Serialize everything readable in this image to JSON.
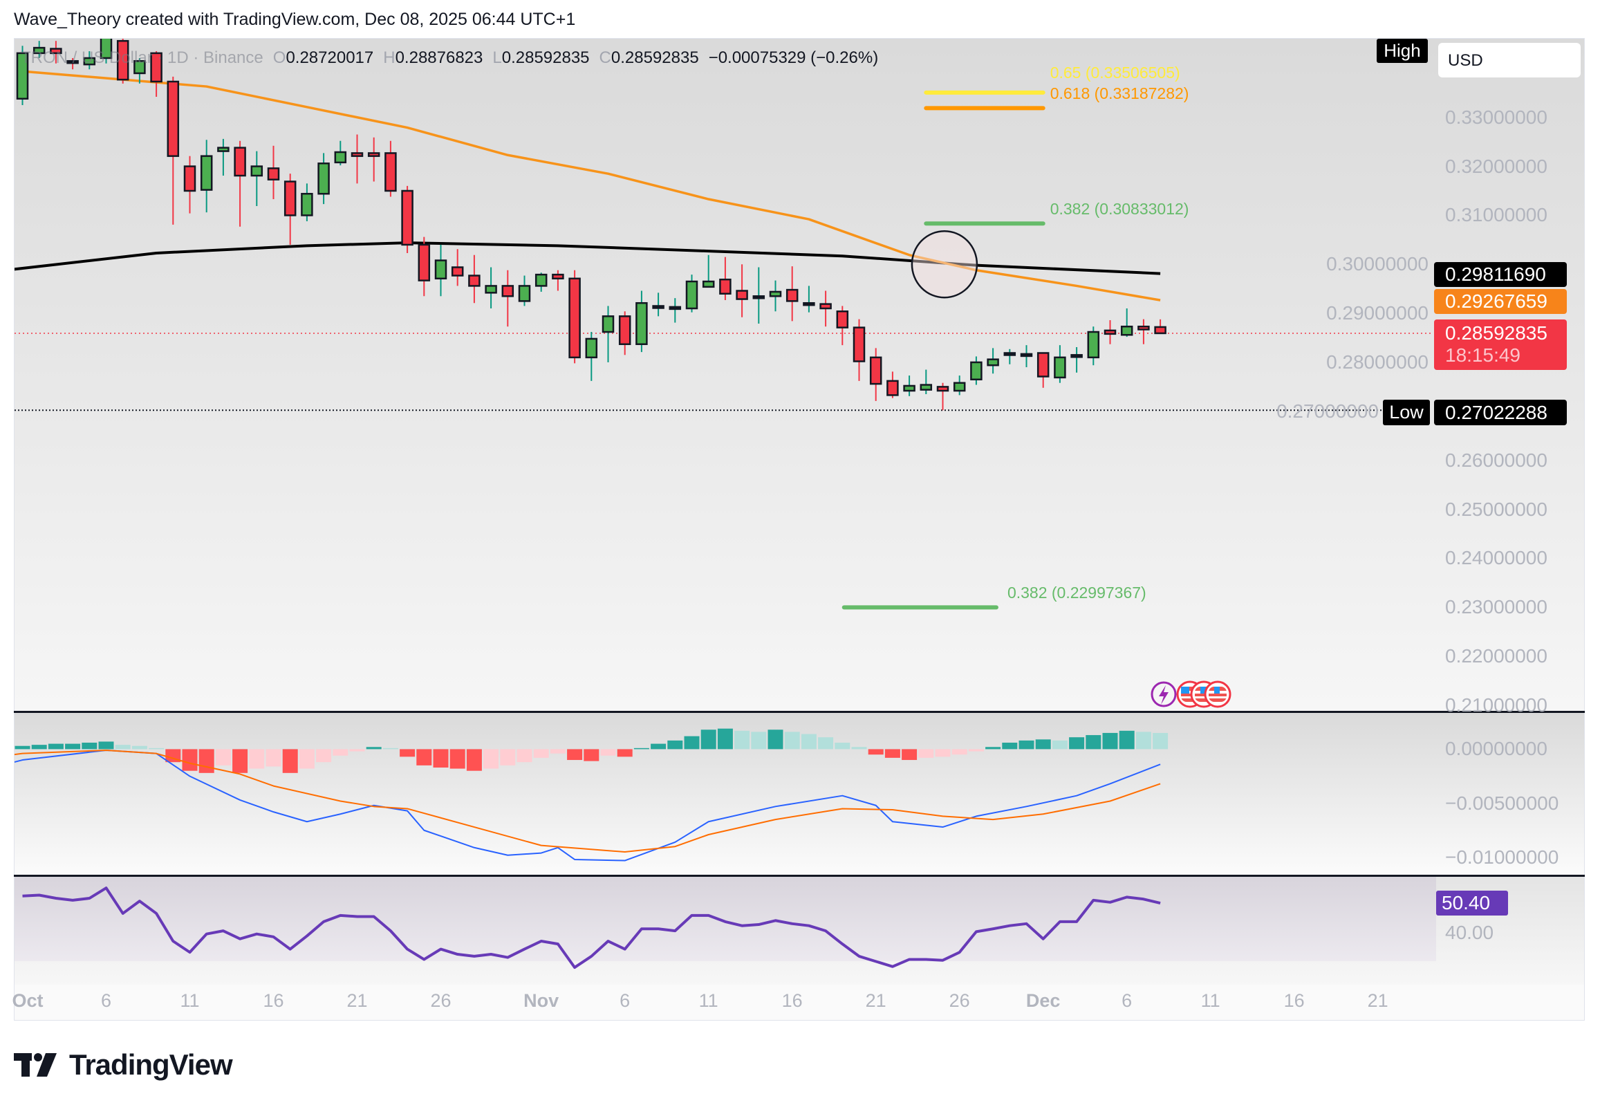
{
  "header": {
    "credit": "Wave_Theory created with TradingView.com, Dec 08, 2025 06:44 UTC+1"
  },
  "legend": {
    "symbol": "TRON / US Dollar · 1D · Binance",
    "open_key": "O",
    "open": "0.28720017",
    "high_key": "H",
    "high": "0.28876823",
    "low_key": "L",
    "low": "0.28592835",
    "close_key": "C",
    "close": "0.28592835",
    "change": "−0.00075329 (−0.26%)"
  },
  "currency_button": "USD",
  "tags": {
    "high_label": "High",
    "low_label": "Low",
    "low_value": "0.27022288",
    "ma200_value": "0.29811690",
    "ema50_value": "0.29267659",
    "last_price": "0.28592835",
    "countdown": "18:15:49",
    "rsi_value": "50.40"
  },
  "colors": {
    "up_body": "#4caf50",
    "down_body": "#f23645",
    "up_wick": "#089981",
    "down_wick": "#f23645",
    "ema50": "#f7931a",
    "ma200": "#000000",
    "macd": "#2962ff",
    "signal": "#ff6d00",
    "rsi": "#673ab7",
    "fib_065": "#ffeb3b",
    "fib_0618": "#ff9800",
    "fib_0382": "#66bb6a"
  },
  "price_axis": {
    "ticks": [
      "0.33000000",
      "0.32000000",
      "0.31000000",
      "0.30000000",
      "0.29000000",
      "0.28000000",
      "0.27000000",
      "0.26000000",
      "0.25000000",
      "0.24000000",
      "0.23000000",
      "0.22000000",
      "0.21000000"
    ]
  },
  "macd_axis": {
    "ticks": [
      "0.00000000",
      "−0.00500000",
      "−0.01000000"
    ]
  },
  "rsi_axis": {
    "ticks": [
      "40.00"
    ]
  },
  "time_axis": {
    "ticks": [
      {
        "label": "Oct",
        "date": "Oct 1",
        "bold": true
      },
      {
        "label": "6",
        "date": "Oct 6"
      },
      {
        "label": "11",
        "date": "Oct 11"
      },
      {
        "label": "16",
        "date": "Oct 16"
      },
      {
        "label": "21",
        "date": "Oct 21"
      },
      {
        "label": "26",
        "date": "Oct 26"
      },
      {
        "label": "Nov",
        "date": "Nov 1",
        "bold": true
      },
      {
        "label": "6",
        "date": "Nov 6"
      },
      {
        "label": "11",
        "date": "Nov 11"
      },
      {
        "label": "16",
        "date": "Nov 16"
      },
      {
        "label": "21",
        "date": "Nov 21"
      },
      {
        "label": "26",
        "date": "Nov 26"
      },
      {
        "label": "Dec",
        "date": "Dec 1",
        "bold": true
      },
      {
        "label": "6",
        "date": "Dec 6"
      },
      {
        "label": "11",
        "date": "Dec 11"
      },
      {
        "label": "16",
        "date": "Dec 16"
      },
      {
        "label": "21",
        "date": "Dec 21"
      }
    ]
  },
  "fib_levels": [
    {
      "label": "0.65 (0.33506505)",
      "price": 0.33506505,
      "color_key": "fib_065"
    },
    {
      "label": "0.618 (0.33187282)",
      "price": 0.33187282,
      "color_key": "fib_0618"
    },
    {
      "label": "0.382 (0.30833012)",
      "price": 0.30833012,
      "color_key": "fib_0382"
    },
    {
      "label": "0.382 (0.22997367)",
      "price": 0.22997367,
      "color_key": "fib_0382"
    }
  ],
  "event_icons": [
    "lightning-icon",
    "us-flag-icon",
    "us-flag-icon",
    "us-flag-icon"
  ],
  "chart_data": {
    "type": "candlestick",
    "interval": "1D",
    "ylim": [
      0.205,
      0.35
    ],
    "columns": [
      "date",
      "open",
      "high",
      "low",
      "close"
    ],
    "candles": [
      [
        "Oct 1",
        0.3338,
        0.3446,
        0.3325,
        0.3431
      ],
      [
        "Oct 2",
        0.3431,
        0.3456,
        0.3421,
        0.3442
      ],
      [
        "Oct 3",
        0.344,
        0.3456,
        0.341,
        0.3431
      ],
      [
        "Oct 4",
        0.3415,
        0.3421,
        0.3398,
        0.3413
      ],
      [
        "Oct 5",
        0.3408,
        0.3435,
        0.3398,
        0.3421
      ],
      [
        "Oct 6",
        0.3421,
        0.3477,
        0.341,
        0.3467
      ],
      [
        "Oct 7",
        0.3456,
        0.3467,
        0.3369,
        0.3377
      ],
      [
        "Oct 8",
        0.339,
        0.3421,
        0.3369,
        0.3415
      ],
      [
        "Oct 9",
        0.3431,
        0.3435,
        0.3342,
        0.3373
      ],
      [
        "Oct 10",
        0.3373,
        0.3383,
        0.3081,
        0.3221
      ],
      [
        "Oct 11",
        0.32,
        0.3221,
        0.3104,
        0.315
      ],
      [
        "Oct 12",
        0.3152,
        0.3254,
        0.3106,
        0.3221
      ],
      [
        "Oct 13",
        0.3231,
        0.3256,
        0.3181,
        0.3238
      ],
      [
        "Oct 14",
        0.3238,
        0.3252,
        0.3077,
        0.3181
      ],
      [
        "Oct 15",
        0.3181,
        0.3231,
        0.3119,
        0.32
      ],
      [
        "Oct 16",
        0.3196,
        0.3242,
        0.3133,
        0.3173
      ],
      [
        "Oct 17",
        0.3169,
        0.3185,
        0.304,
        0.31
      ],
      [
        "Oct 18",
        0.31,
        0.3165,
        0.3088,
        0.3144
      ],
      [
        "Oct 19",
        0.3144,
        0.3227,
        0.3123,
        0.3206
      ],
      [
        "Oct 20",
        0.3208,
        0.3252,
        0.3202,
        0.3229
      ],
      [
        "Oct 21",
        0.3227,
        0.3265,
        0.3165,
        0.3221
      ],
      [
        "Oct 22",
        0.3227,
        0.3259,
        0.3169,
        0.3221
      ],
      [
        "Oct 23",
        0.3227,
        0.3252,
        0.3138,
        0.315
      ],
      [
        "Oct 24",
        0.315,
        0.316,
        0.3023,
        0.304
      ],
      [
        "Oct 25",
        0.304,
        0.3056,
        0.2935,
        0.2967
      ],
      [
        "Oct 26",
        0.2971,
        0.304,
        0.2935,
        0.3008
      ],
      [
        "Oct 27",
        0.2994,
        0.3031,
        0.2956,
        0.2977
      ],
      [
        "Oct 28",
        0.2977,
        0.3019,
        0.2921,
        0.2956
      ],
      [
        "Oct 29",
        0.2942,
        0.2994,
        0.291,
        0.2956
      ],
      [
        "Oct 30",
        0.2956,
        0.2988,
        0.2873,
        0.2935
      ],
      [
        "Oct 31",
        0.2925,
        0.2977,
        0.2915,
        0.2956
      ],
      [
        "Nov 1",
        0.2956,
        0.2983,
        0.2944,
        0.2979
      ],
      [
        "Nov 2",
        0.2979,
        0.2988,
        0.2946,
        0.2971
      ],
      [
        "Nov 3",
        0.2971,
        0.2988,
        0.2798,
        0.281
      ],
      [
        "Nov 4",
        0.281,
        0.2862,
        0.2762,
        0.2848
      ],
      [
        "Nov 5",
        0.2862,
        0.2915,
        0.28,
        0.2894
      ],
      [
        "Nov 6",
        0.2894,
        0.2904,
        0.2815,
        0.2837
      ],
      [
        "Nov 7",
        0.2837,
        0.2946,
        0.2821,
        0.2921
      ],
      [
        "Nov 8",
        0.2913,
        0.2942,
        0.2894,
        0.2915
      ],
      [
        "Nov 9",
        0.2913,
        0.2931,
        0.2881,
        0.2913
      ],
      [
        "Nov 10",
        0.291,
        0.2979,
        0.2902,
        0.2965
      ],
      [
        "Nov 11",
        0.2954,
        0.3019,
        0.2954,
        0.2965
      ],
      [
        "Nov 12",
        0.2969,
        0.3015,
        0.2927,
        0.294
      ],
      [
        "Nov 13",
        0.2946,
        0.3,
        0.2892,
        0.2929
      ],
      [
        "Nov 14",
        0.2935,
        0.2994,
        0.2879,
        0.2935
      ],
      [
        "Nov 15",
        0.2935,
        0.2967,
        0.2904,
        0.2944
      ],
      [
        "Nov 16",
        0.2948,
        0.2996,
        0.2884,
        0.2925
      ],
      [
        "Nov 17",
        0.2921,
        0.2956,
        0.2902,
        0.2921
      ],
      [
        "Nov 18",
        0.2919,
        0.2946,
        0.2873,
        0.291
      ],
      [
        "Nov 19",
        0.2904,
        0.2915,
        0.2835,
        0.2871
      ],
      [
        "Nov 20",
        0.2871,
        0.2888,
        0.2762,
        0.2802
      ],
      [
        "Nov 21",
        0.281,
        0.2829,
        0.2721,
        0.2756
      ],
      [
        "Nov 22",
        0.2762,
        0.2781,
        0.2727,
        0.2733
      ],
      [
        "Nov 23",
        0.2742,
        0.2773,
        0.2731,
        0.2752
      ],
      [
        "Nov 24",
        0.2744,
        0.2785,
        0.2735,
        0.2754
      ],
      [
        "Nov 25",
        0.275,
        0.2758,
        0.27022288,
        0.2742
      ],
      [
        "Nov 26",
        0.2742,
        0.2773,
        0.2733,
        0.2758
      ],
      [
        "Nov 27",
        0.2765,
        0.2812,
        0.2754,
        0.28
      ],
      [
        "Nov 28",
        0.2794,
        0.2829,
        0.2777,
        0.2806
      ],
      [
        "Nov 29",
        0.2819,
        0.2827,
        0.2796,
        0.2819
      ],
      [
        "Nov 30",
        0.2817,
        0.2835,
        0.279,
        0.2817
      ],
      [
        "Dec 1",
        0.2819,
        0.2819,
        0.2748,
        0.2771
      ],
      [
        "Dec 2",
        0.2769,
        0.2835,
        0.2758,
        0.281
      ],
      [
        "Dec 3",
        0.2815,
        0.2831,
        0.2779,
        0.2815
      ],
      [
        "Dec 4",
        0.281,
        0.2873,
        0.2794,
        0.2862
      ],
      [
        "Dec 5",
        0.2865,
        0.2886,
        0.2837,
        0.2858
      ],
      [
        "Dec 6",
        0.2856,
        0.291,
        0.2852,
        0.2873
      ],
      [
        "Dec 7",
        0.2873,
        0.2888,
        0.2837,
        0.2867
      ],
      [
        "Dec 8",
        0.28720017,
        0.28876823,
        0.28592835,
        0.28592835
      ]
    ],
    "ema50": [
      [
        "Oct 1",
        0.3394
      ],
      [
        "Oct 12",
        0.3363
      ],
      [
        "Oct 18",
        0.3321
      ],
      [
        "Oct 24",
        0.3279
      ],
      [
        "Oct 30",
        0.3223
      ],
      [
        "Nov 5",
        0.3185
      ],
      [
        "Nov 11",
        0.3133
      ],
      [
        "Nov 17",
        0.3092
      ],
      [
        "Nov 23",
        0.3019
      ],
      [
        "Nov 27",
        0.2988
      ],
      [
        "Dec 3",
        0.2956
      ],
      [
        "Dec 8",
        0.29267659
      ]
    ],
    "ma200": [
      [
        "Sep 30",
        0.2988
      ],
      [
        "Oct 9",
        0.3023
      ],
      [
        "Oct 18",
        0.3038
      ],
      [
        "Oct 24",
        0.3044
      ],
      [
        "Nov 2",
        0.3038
      ],
      [
        "Nov 11",
        0.3027
      ],
      [
        "Nov 19",
        0.3017
      ],
      [
        "Nov 27",
        0.2998
      ],
      [
        "Dec 8",
        0.2981169
      ]
    ],
    "macd": {
      "ylim": [
        -0.0125,
        0.003
      ],
      "macd_line": [
        [
          "Sep 30",
          -0.0014
        ],
        [
          "Oct 1",
          -0.001
        ],
        [
          "Oct 6",
          -0.0001
        ],
        [
          "Oct 9",
          -0.0004
        ],
        [
          "Oct 11",
          -0.0025
        ],
        [
          "Oct 14",
          -0.0047
        ],
        [
          "Oct 16",
          -0.0058
        ],
        [
          "Oct 18",
          -0.0067
        ],
        [
          "Oct 20",
          -0.006
        ],
        [
          "Oct 22",
          -0.0052
        ],
        [
          "Oct 24",
          -0.0057
        ],
        [
          "Oct 25",
          -0.0075
        ],
        [
          "Oct 28",
          -0.0091
        ],
        [
          "Oct 30",
          -0.0098
        ],
        [
          "Nov 1",
          -0.0096
        ],
        [
          "Nov 2",
          -0.0091
        ],
        [
          "Nov 3",
          -0.0102
        ],
        [
          "Nov 6",
          -0.0103
        ],
        [
          "Nov 9",
          -0.0086
        ],
        [
          "Nov 11",
          -0.0067
        ],
        [
          "Nov 15",
          -0.0053
        ],
        [
          "Nov 19",
          -0.0043
        ],
        [
          "Nov 21",
          -0.0052
        ],
        [
          "Nov 22",
          -0.0067
        ],
        [
          "Nov 25",
          -0.0072
        ],
        [
          "Nov 27",
          -0.0062
        ],
        [
          "Nov 30",
          -0.0053
        ],
        [
          "Dec 3",
          -0.0043
        ],
        [
          "Dec 5",
          -0.0032
        ],
        [
          "Dec 8",
          -0.0014
        ]
      ],
      "signal_line": [
        [
          "Sep 30",
          -0.0006
        ],
        [
          "Oct 1",
          -0.0004
        ],
        [
          "Oct 6",
          -0.0001
        ],
        [
          "Oct 9",
          -0.0004
        ],
        [
          "Oct 11",
          -0.0013
        ],
        [
          "Oct 14",
          -0.0023
        ],
        [
          "Oct 16",
          -0.0034
        ],
        [
          "Oct 20",
          -0.0048
        ],
        [
          "Oct 22",
          -0.0053
        ],
        [
          "Oct 24",
          -0.0055
        ],
        [
          "Oct 28",
          -0.0072
        ],
        [
          "Nov 1",
          -0.0089
        ],
        [
          "Nov 6",
          -0.0095
        ],
        [
          "Nov 9",
          -0.009
        ],
        [
          "Nov 11",
          -0.0079
        ],
        [
          "Nov 15",
          -0.0065
        ],
        [
          "Nov 19",
          -0.0055
        ],
        [
          "Nov 22",
          -0.0056
        ],
        [
          "Nov 25",
          -0.0062
        ],
        [
          "Nov 28",
          -0.0065
        ],
        [
          "Dec 1",
          -0.006
        ],
        [
          "Dec 5",
          -0.0048
        ],
        [
          "Dec 8",
          -0.0032
        ]
      ],
      "histogram": [
        0.0003,
        0.0004,
        0.0005,
        0.0005,
        0.0006,
        0.0007,
        0.0004,
        0.0003,
        0.0001,
        -0.0012,
        -0.002,
        -0.0022,
        -0.0015,
        -0.0022,
        -0.0018,
        -0.0016,
        -0.0022,
        -0.0018,
        -0.0012,
        -0.0006,
        -0.0002,
        0.0002,
        0.0001,
        -0.0007,
        -0.0015,
        -0.0017,
        -0.0018,
        -0.002,
        -0.0018,
        -0.0015,
        -0.0012,
        -0.0008,
        -0.0004,
        -0.001,
        -0.0011,
        -0.0006,
        -0.0007,
        0.0001,
        0.0005,
        0.0008,
        0.0012,
        0.0018,
        0.0019,
        0.0017,
        0.0016,
        0.0018,
        0.0016,
        0.0014,
        0.0011,
        0.0006,
        0.0002,
        -0.0005,
        -0.0008,
        -0.001,
        -0.0008,
        -0.0007,
        -0.0005,
        -0.0002,
        0.0002,
        0.0006,
        0.0008,
        0.0009,
        0.0008,
        0.0011,
        0.0013,
        0.0015,
        0.0017,
        0.0016,
        0.0015
      ]
    },
    "rsi": {
      "ylim": [
        23.6,
        59.3
      ],
      "values": [
        52.9,
        53.2,
        52.1,
        51.4,
        52.1,
        55.7,
        46.8,
        51.1,
        46.8,
        37.1,
        33.2,
        39.6,
        40.7,
        37.9,
        39.6,
        38.6,
        34.3,
        38.9,
        43.9,
        46.1,
        45.7,
        45.7,
        40.7,
        34.3,
        30.7,
        34.3,
        32.5,
        31.8,
        32.5,
        31.4,
        34.3,
        37.1,
        36.1,
        27.9,
        31.8,
        37.1,
        34.3,
        41.4,
        41.4,
        40.7,
        46.1,
        46.1,
        43.9,
        42.5,
        42.9,
        44.3,
        43.2,
        42.5,
        40.7,
        36.1,
        31.8,
        30.0,
        28.2,
        30.7,
        30.7,
        30.4,
        33.2,
        40.4,
        41.4,
        42.5,
        43.2,
        37.9,
        43.9,
        43.9,
        51.4,
        50.7,
        52.5,
        51.8,
        50.4
      ]
    }
  }
}
